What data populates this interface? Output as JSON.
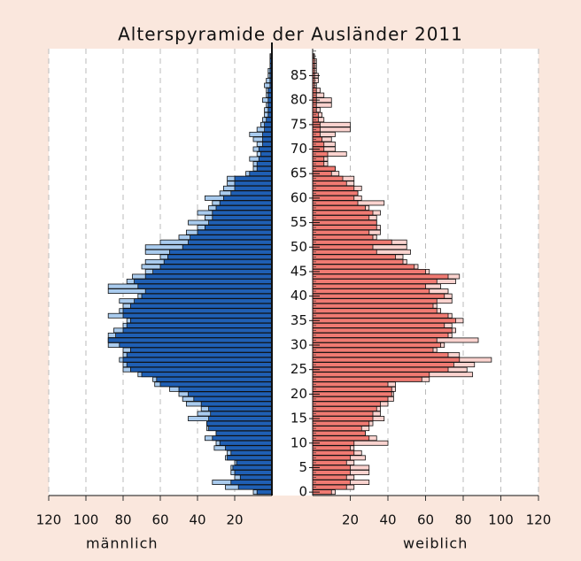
{
  "chart_data": {
    "type": "pyramid",
    "title": "Alterspyramide der Ausländer 2011",
    "xlabel_left": "männlich",
    "xlabel_right": "weiblich",
    "ylim": [
      -0.7,
      90.5
    ],
    "yticks": [
      0,
      5,
      10,
      15,
      20,
      25,
      30,
      35,
      40,
      45,
      50,
      55,
      60,
      65,
      70,
      75,
      80,
      85
    ],
    "xlim": [
      0,
      120
    ],
    "xticks": [
      20,
      40,
      60,
      80,
      100,
      120
    ],
    "grid": true,
    "series": [
      {
        "side": "left",
        "color": "#a9cbee",
        "values": [
          10,
          25,
          32,
          20,
          22,
          22,
          20,
          25,
          24,
          31,
          30,
          36,
          30,
          35,
          35,
          45,
          40,
          38,
          46,
          48,
          50,
          55,
          63,
          64,
          72,
          80,
          80,
          82,
          80,
          80,
          88,
          88,
          88,
          85,
          80,
          78,
          88,
          82,
          80,
          82,
          72,
          88,
          88,
          78,
          75,
          68,
          70,
          68,
          60,
          68,
          68,
          60,
          50,
          46,
          40,
          45,
          36,
          40,
          34,
          32,
          36,
          28,
          26,
          24,
          24,
          14,
          10,
          10,
          12,
          8,
          10,
          8,
          10,
          12,
          8,
          6,
          5,
          4,
          4,
          3,
          5,
          3,
          3,
          4,
          3,
          2,
          2,
          1,
          1,
          1
        ]
      },
      {
        "side": "left",
        "color": "#1f5fb4",
        "values": [
          8,
          18,
          22,
          17,
          20,
          21,
          19,
          24,
          22,
          25,
          28,
          32,
          30,
          34,
          35,
          34,
          33,
          34,
          38,
          42,
          45,
          50,
          60,
          62,
          70,
          76,
          78,
          80,
          78,
          76,
          82,
          88,
          84,
          80,
          78,
          76,
          80,
          80,
          76,
          74,
          70,
          68,
          72,
          74,
          68,
          64,
          60,
          58,
          56,
          55,
          48,
          45,
          44,
          40,
          36,
          34,
          32,
          32,
          30,
          28,
          26,
          22,
          20,
          20,
          20,
          12,
          8,
          8,
          7,
          6,
          7,
          5,
          5,
          5,
          4,
          4,
          3,
          2,
          2,
          2,
          2,
          2,
          2,
          1,
          1,
          1,
          1,
          1,
          1,
          0.5
        ]
      },
      {
        "side": "right",
        "color": "#fbd3cf",
        "values": [
          12,
          22,
          30,
          22,
          30,
          30,
          22,
          28,
          26,
          22,
          40,
          34,
          28,
          30,
          32,
          38,
          36,
          36,
          40,
          43,
          43,
          44,
          44,
          62,
          85,
          82,
          86,
          95,
          78,
          66,
          70,
          88,
          74,
          76,
          74,
          80,
          74,
          68,
          66,
          74,
          74,
          72,
          68,
          76,
          78,
          62,
          56,
          50,
          48,
          52,
          50,
          50,
          34,
          36,
          36,
          34,
          34,
          36,
          30,
          38,
          26,
          24,
          26,
          22,
          22,
          14,
          12,
          8,
          8,
          18,
          12,
          12,
          10,
          12,
          20,
          20,
          6,
          5,
          4,
          10,
          10,
          6,
          4,
          2,
          3,
          3,
          2,
          2,
          2,
          1
        ]
      },
      {
        "side": "right",
        "color": "#f07a72",
        "values": [
          10,
          18,
          20,
          18,
          20,
          20,
          18,
          20,
          22,
          20,
          22,
          30,
          28,
          26,
          30,
          32,
          32,
          34,
          36,
          40,
          42,
          42,
          40,
          58,
          62,
          72,
          75,
          78,
          72,
          64,
          68,
          66,
          72,
          74,
          70,
          76,
          72,
          66,
          64,
          66,
          70,
          62,
          60,
          66,
          72,
          60,
          54,
          48,
          44,
          34,
          32,
          42,
          32,
          30,
          34,
          34,
          30,
          32,
          28,
          24,
          22,
          24,
          22,
          18,
          16,
          10,
          12,
          6,
          6,
          8,
          6,
          6,
          5,
          4,
          4,
          4,
          3,
          3,
          2,
          2,
          2,
          2,
          2,
          1,
          1,
          1,
          1,
          1,
          1,
          0.5
        ]
      }
    ]
  }
}
